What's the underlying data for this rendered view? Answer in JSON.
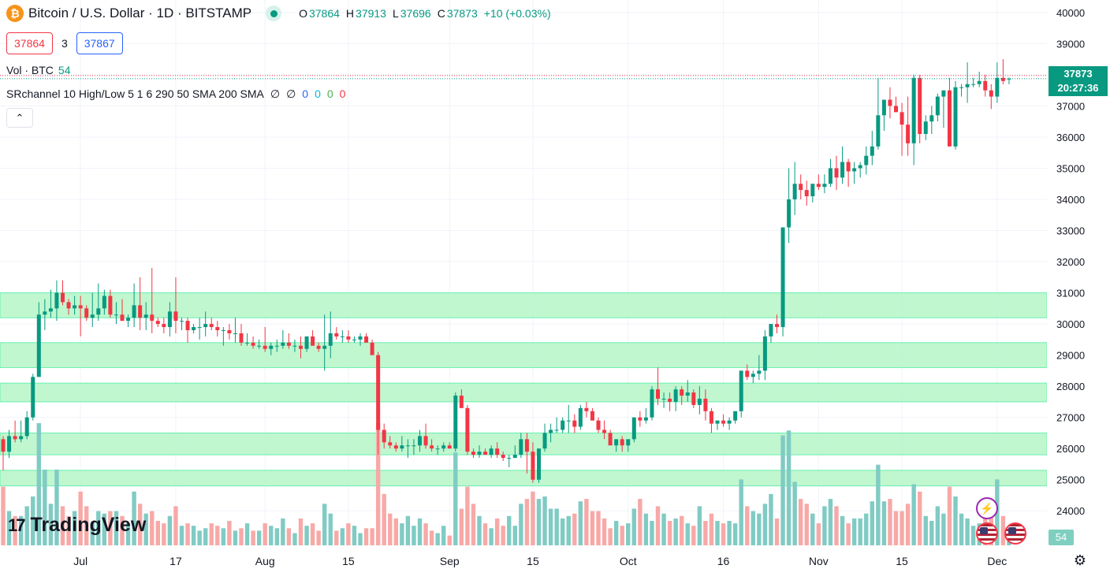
{
  "symbol": {
    "title": "Bitcoin / U.S. Dollar · 1D · BITSTAMP",
    "logo_icon": "bitcoin-icon",
    "logo_glyph": "₿",
    "market_status": "open"
  },
  "ohlc": {
    "o_label": "O",
    "o": "37864",
    "h_label": "H",
    "h": "37913",
    "l_label": "L",
    "l": "37696",
    "c_label": "C",
    "c": "37873",
    "change": "+10 (+0.03%)"
  },
  "bidask": {
    "bid": "37864",
    "spread": "3",
    "ask": "37867"
  },
  "indicators": {
    "volume_label": "Vol · BTC",
    "volume_value": "54",
    "sr_label": "SRchannel 10 High/Low 5 1 6 290 50 SMA 200 SMA",
    "sr_nan1": "∅",
    "sr_nan2": "∅",
    "sr_v1": "0",
    "sr_v2": "0",
    "sr_v3": "0",
    "sr_v4": "0",
    "collapse_glyph": "⌃"
  },
  "price_tag": {
    "price": "37873",
    "countdown": "20:27:36"
  },
  "volume_tag": "54",
  "brand": {
    "name": "TradingView",
    "mark": "17"
  },
  "event_icons": {
    "bolt": "⚡"
  },
  "settings_glyph": "⚙",
  "colors": {
    "up": "#089981",
    "down": "#f23645",
    "up_volume": "#80cbc4",
    "down_volume": "#f7a9a7",
    "zone_fill": "#b9f6ca",
    "zone_stroke": "#69f0ae",
    "accent": "#2962ff"
  },
  "chart_data": {
    "type": "candlestick",
    "symbol": "BTCUSD",
    "interval": "1D",
    "exchange": "BITSTAMP",
    "y_range": [
      23500,
      40300
    ],
    "y_ticks": [
      24000,
      25000,
      26000,
      27000,
      28000,
      29000,
      30000,
      31000,
      32000,
      33000,
      34000,
      35000,
      36000,
      37000,
      38000,
      39000,
      40000
    ],
    "x_labels": [
      {
        "label": "Jul",
        "index": 13
      },
      {
        "label": "17",
        "index": 29
      },
      {
        "label": "Aug",
        "index": 44
      },
      {
        "label": "15",
        "index": 58
      },
      {
        "label": "Sep",
        "index": 75
      },
      {
        "label": "15",
        "index": 89
      },
      {
        "label": "Oct",
        "index": 105
      },
      {
        "label": "16",
        "index": 121
      },
      {
        "label": "Nov",
        "index": 137
      },
      {
        "label": "15",
        "index": 151
      },
      {
        "label": "Dec",
        "index": 167
      }
    ],
    "sr_zones": [
      [
        30200,
        31000
      ],
      [
        28600,
        29400
      ],
      [
        27500,
        28100
      ],
      [
        25800,
        26500
      ],
      [
        24800,
        25300
      ]
    ],
    "current_price": 37873,
    "candles": [
      [
        26300,
        26400,
        25300,
        25900,
        24
      ],
      [
        25900,
        26600,
        25700,
        26400,
        14
      ],
      [
        26400,
        26900,
        26200,
        26300,
        12
      ],
      [
        26300,
        26900,
        26200,
        26400,
        12
      ],
      [
        26400,
        27200,
        26300,
        27000,
        16
      ],
      [
        27000,
        28400,
        26900,
        28300,
        20
      ],
      [
        28300,
        30700,
        28300,
        30300,
        50
      ],
      [
        30300,
        30800,
        29800,
        30400,
        31
      ],
      [
        30400,
        31100,
        30200,
        30500,
        17
      ],
      [
        30500,
        31400,
        30100,
        31000,
        31
      ],
      [
        31000,
        31400,
        30600,
        30700,
        16
      ],
      [
        30700,
        30800,
        30300,
        30500,
        12
      ],
      [
        30500,
        30900,
        30300,
        30600,
        14
      ],
      [
        30600,
        30900,
        29600,
        30500,
        22
      ],
      [
        30500,
        30600,
        30100,
        30200,
        16
      ],
      [
        30200,
        31000,
        29900,
        30300,
        9
      ],
      [
        30300,
        31300,
        30100,
        30500,
        14
      ],
      [
        30500,
        31100,
        30300,
        30900,
        13
      ],
      [
        30900,
        31100,
        30200,
        30300,
        14
      ],
      [
        30300,
        30700,
        30000,
        30300,
        14
      ],
      [
        30300,
        30800,
        30100,
        30100,
        12
      ],
      [
        30100,
        30300,
        29900,
        30200,
        9
      ],
      [
        30200,
        31300,
        29900,
        30600,
        22
      ],
      [
        30600,
        31500,
        29800,
        30200,
        17
      ],
      [
        30200,
        30700,
        29800,
        30300,
        13
      ],
      [
        30300,
        31800,
        29700,
        30100,
        14
      ],
      [
        30100,
        30200,
        29900,
        30000,
        10
      ],
      [
        30000,
        30200,
        29700,
        29900,
        9
      ],
      [
        29900,
        30700,
        29600,
        30400,
        12
      ],
      [
        30400,
        31500,
        29700,
        30100,
        16
      ],
      [
        30100,
        30200,
        29800,
        30100,
        8
      ],
      [
        30100,
        30200,
        29400,
        29800,
        9
      ],
      [
        29800,
        30000,
        29700,
        29900,
        8
      ],
      [
        29900,
        30200,
        29500,
        29900,
        6
      ],
      [
        29900,
        30400,
        29600,
        30000,
        7
      ],
      [
        30000,
        30200,
        29800,
        29900,
        9
      ],
      [
        29900,
        30100,
        29600,
        29800,
        8
      ],
      [
        29800,
        29900,
        29300,
        29800,
        7
      ],
      [
        29800,
        30000,
        29500,
        29700,
        10
      ],
      [
        29700,
        30200,
        29400,
        29700,
        6
      ],
      [
        29700,
        30000,
        29300,
        29400,
        7
      ],
      [
        29400,
        29700,
        29300,
        29400,
        9
      ],
      [
        29400,
        29600,
        29200,
        29300,
        6
      ],
      [
        29300,
        29500,
        29200,
        29300,
        6
      ],
      [
        29300,
        29900,
        29100,
        29200,
        9
      ],
      [
        29200,
        29400,
        29000,
        29300,
        8
      ],
      [
        29300,
        29500,
        29100,
        29300,
        7
      ],
      [
        29300,
        29800,
        29200,
        29400,
        11
      ],
      [
        29400,
        29700,
        29200,
        29300,
        7
      ],
      [
        29300,
        29500,
        29100,
        29300,
        5
      ],
      [
        29300,
        29600,
        28900,
        29200,
        11
      ],
      [
        29200,
        29600,
        29100,
        29600,
        8
      ],
      [
        29600,
        29800,
        29400,
        29300,
        9
      ],
      [
        29300,
        29400,
        29100,
        29200,
        6
      ],
      [
        29200,
        30300,
        28500,
        29300,
        17
      ],
      [
        29300,
        30400,
        28900,
        29700,
        13
      ],
      [
        29700,
        29900,
        29500,
        29600,
        6
      ],
      [
        29600,
        29800,
        29400,
        29600,
        7
      ],
      [
        29600,
        29800,
        29400,
        29500,
        9
      ],
      [
        29500,
        29600,
        29400,
        29500,
        8
      ],
      [
        29500,
        29700,
        29300,
        29600,
        5
      ],
      [
        29600,
        29700,
        29400,
        29400,
        7
      ],
      [
        29400,
        29500,
        29000,
        29000,
        7
      ],
      [
        29000,
        29100,
        25800,
        26600,
        50
      ],
      [
        26600,
        26800,
        26000,
        26200,
        21
      ],
      [
        26200,
        26400,
        26000,
        26100,
        13
      ],
      [
        26100,
        26200,
        25900,
        26000,
        11
      ],
      [
        26000,
        26400,
        25900,
        26100,
        9
      ],
      [
        26100,
        26300,
        25700,
        26100,
        12
      ],
      [
        26100,
        26300,
        25800,
        26100,
        8
      ],
      [
        26100,
        26600,
        25900,
        26400,
        11
      ],
      [
        26400,
        26800,
        26000,
        26100,
        9
      ],
      [
        26100,
        26300,
        25900,
        26000,
        6
      ],
      [
        26000,
        26100,
        25800,
        26000,
        5
      ],
      [
        26000,
        26200,
        25900,
        26100,
        8
      ],
      [
        26100,
        26200,
        26000,
        26000,
        4
      ],
      [
        26000,
        27800,
        25900,
        27700,
        38
      ],
      [
        27700,
        27900,
        27300,
        27300,
        15
      ],
      [
        27300,
        27400,
        25800,
        25900,
        24
      ],
      [
        25900,
        26000,
        25700,
        25800,
        17
      ],
      [
        25800,
        26100,
        25700,
        25900,
        12
      ],
      [
        25900,
        26000,
        25800,
        25800,
        9
      ],
      [
        25800,
        26100,
        25700,
        26000,
        7
      ],
      [
        26000,
        26200,
        25700,
        25800,
        11
      ],
      [
        25800,
        25900,
        25600,
        25700,
        8
      ],
      [
        25700,
        25800,
        25400,
        25700,
        12
      ],
      [
        25700,
        26100,
        25700,
        25800,
        8
      ],
      [
        25800,
        26500,
        25700,
        26300,
        17
      ],
      [
        26300,
        26500,
        25200,
        25900,
        19
      ],
      [
        25900,
        26200,
        24900,
        25000,
        22
      ],
      [
        25000,
        26000,
        24900,
        26000,
        19
      ],
      [
        26000,
        26800,
        25900,
        26500,
        20
      ],
      [
        26500,
        26800,
        26200,
        26600,
        15
      ],
      [
        26600,
        27000,
        26500,
        26600,
        15
      ],
      [
        26600,
        27000,
        26500,
        26900,
        11
      ],
      [
        26900,
        27400,
        26500,
        26900,
        12
      ],
      [
        26900,
        27100,
        26500,
        26700,
        13
      ],
      [
        26700,
        27400,
        26600,
        27300,
        18
      ],
      [
        27300,
        27500,
        27000,
        27200,
        19
      ],
      [
        27200,
        27300,
        26900,
        26900,
        14
      ],
      [
        26900,
        27000,
        26500,
        26600,
        14
      ],
      [
        26600,
        26900,
        26300,
        26500,
        11
      ],
      [
        26500,
        26600,
        26200,
        26100,
        7
      ],
      [
        26100,
        26300,
        25900,
        26300,
        10
      ],
      [
        26300,
        26400,
        25900,
        26100,
        8
      ],
      [
        26100,
        26300,
        25900,
        26300,
        9
      ],
      [
        26300,
        27000,
        26200,
        27000,
        15
      ],
      [
        27000,
        27200,
        26700,
        26900,
        19
      ],
      [
        26900,
        27300,
        26800,
        27000,
        13
      ],
      [
        27000,
        28000,
        26900,
        27900,
        10
      ],
      [
        27900,
        28600,
        27400,
        27600,
        16
      ],
      [
        27600,
        27800,
        27300,
        27600,
        13
      ],
      [
        27600,
        27800,
        27200,
        27500,
        10
      ],
      [
        27500,
        28000,
        27200,
        27900,
        11
      ],
      [
        27900,
        28000,
        27400,
        27700,
        12
      ],
      [
        27700,
        28200,
        27500,
        27800,
        9
      ],
      [
        27800,
        27900,
        27300,
        27400,
        8
      ],
      [
        27400,
        28000,
        27100,
        27600,
        16
      ],
      [
        27600,
        27900,
        26900,
        27200,
        10
      ],
      [
        27200,
        27300,
        26500,
        26800,
        13
      ],
      [
        26800,
        26900,
        26600,
        26900,
        10
      ],
      [
        26900,
        27100,
        26700,
        26800,
        9
      ],
      [
        26800,
        27000,
        26600,
        26900,
        10
      ],
      [
        26900,
        27100,
        26800,
        27200,
        9
      ],
      [
        27200,
        28500,
        27000,
        28500,
        27
      ],
      [
        28500,
        28700,
        28200,
        28300,
        16
      ],
      [
        28300,
        28500,
        28100,
        28400,
        14
      ],
      [
        28400,
        29000,
        28200,
        28500,
        13
      ],
      [
        28500,
        29800,
        28200,
        29600,
        17
      ],
      [
        29600,
        30000,
        29400,
        30000,
        21
      ],
      [
        30000,
        30300,
        29700,
        29900,
        11
      ],
      [
        29900,
        33000,
        29600,
        33100,
        45
      ],
      [
        33100,
        35000,
        32600,
        34000,
        47
      ],
      [
        34000,
        35200,
        33500,
        34500,
        26
      ],
      [
        34500,
        34800,
        34000,
        34300,
        19
      ],
      [
        34300,
        34600,
        33800,
        34100,
        17
      ],
      [
        34100,
        34500,
        33900,
        34500,
        13
      ],
      [
        34500,
        34800,
        34300,
        34400,
        9
      ],
      [
        34400,
        34800,
        34200,
        34500,
        16
      ],
      [
        34500,
        35300,
        34400,
        35000,
        19
      ],
      [
        35000,
        35400,
        34300,
        34700,
        16
      ],
      [
        34700,
        35700,
        34500,
        35200,
        12
      ],
      [
        35200,
        35300,
        34400,
        34900,
        9
      ],
      [
        34900,
        35200,
        34500,
        35000,
        11
      ],
      [
        35000,
        35200,
        34700,
        35100,
        11
      ],
      [
        35100,
        35700,
        34800,
        35400,
        13
      ],
      [
        35400,
        36200,
        35100,
        35700,
        18
      ],
      [
        35700,
        37900,
        35600,
        36700,
        33
      ],
      [
        36700,
        37200,
        36200,
        37200,
        18
      ],
      [
        37200,
        37600,
        36600,
        37000,
        19
      ],
      [
        37000,
        37300,
        36900,
        36800,
        14
      ],
      [
        36800,
        37100,
        35400,
        36400,
        14
      ],
      [
        36400,
        37300,
        35400,
        35800,
        17
      ],
      [
        35800,
        38000,
        35100,
        37900,
        25
      ],
      [
        37900,
        38000,
        35800,
        36100,
        22
      ],
      [
        36100,
        36700,
        35900,
        36500,
        12
      ],
      [
        36500,
        37000,
        36100,
        36700,
        10
      ],
      [
        36700,
        37400,
        36500,
        37300,
        16
      ],
      [
        37300,
        37500,
        36300,
        37500,
        13
      ],
      [
        37500,
        37900,
        35700,
        35700,
        24
      ],
      [
        35700,
        37800,
        35600,
        37600,
        20
      ],
      [
        37600,
        37700,
        37300,
        37600,
        13
      ],
      [
        37600,
        38400,
        37100,
        37700,
        11
      ],
      [
        37700,
        37900,
        37600,
        37700,
        8
      ],
      [
        37700,
        38100,
        37600,
        37800,
        9
      ],
      [
        37800,
        38000,
        37300,
        37500,
        12
      ],
      [
        37500,
        37700,
        36900,
        37300,
        15
      ],
      [
        37300,
        38400,
        37100,
        37900,
        27
      ],
      [
        37900,
        38500,
        37700,
        37800,
        12
      ],
      [
        37864,
        37913,
        37696,
        37873,
        2
      ]
    ]
  }
}
